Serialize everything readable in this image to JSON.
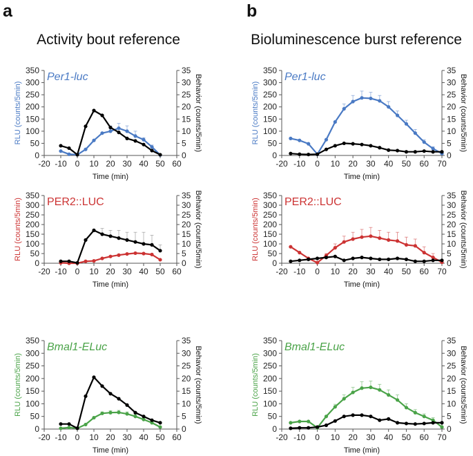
{
  "figure": {
    "panel_a_letter": "a",
    "panel_b_letter": "b",
    "col_a_title": "Activity bout reference",
    "col_b_title": "Bioluminescence burst reference"
  },
  "colors": {
    "per1": "#4a7ac4",
    "per2": "#cc3333",
    "bmal1": "#4aa348",
    "behavior": "#000000"
  },
  "chart_data": [
    {
      "id": "a1",
      "type": "line",
      "gene": "Per1-luc",
      "gene_italic": true,
      "color_key": "per1",
      "xlabel": "Time (min)",
      "ylabel_left": "RLU (counts/5min)",
      "ylabel_right": "Behavior (counts/5min)",
      "xlim": [
        -20,
        60
      ],
      "xticks": [
        -20,
        -10,
        0,
        10,
        20,
        30,
        40,
        50,
        60
      ],
      "ylim_left": [
        0,
        350
      ],
      "yticks_left": [
        0,
        50,
        100,
        150,
        200,
        250,
        300,
        350
      ],
      "ylim_right": [
        0,
        35
      ],
      "yticks_right": [
        0,
        5,
        10,
        15,
        20,
        25,
        30,
        35
      ],
      "series": [
        {
          "name": "RLU",
          "axis": "left",
          "x": [
            -10,
            -5,
            0,
            5,
            10,
            15,
            20,
            25,
            30,
            35,
            40,
            45,
            50
          ],
          "values": [
            18,
            5,
            3,
            25,
            62,
            92,
            100,
            112,
            100,
            80,
            65,
            35,
            2
          ],
          "err": [
            0,
            0,
            0,
            0,
            0,
            0,
            22,
            20,
            22,
            20,
            8,
            8,
            0
          ]
        },
        {
          "name": "Behavior",
          "axis": "right",
          "x": [
            -10,
            -5,
            0,
            5,
            10,
            15,
            20,
            25,
            30,
            35,
            40,
            45,
            50
          ],
          "values": [
            4,
            3,
            0.3,
            12,
            18.5,
            16.5,
            11.5,
            9.5,
            7,
            6,
            4.5,
            2,
            0.3
          ],
          "err": [
            0,
            0,
            0,
            0,
            0,
            0,
            0,
            0,
            0,
            0,
            0,
            0,
            0
          ]
        }
      ]
    },
    {
      "id": "a2",
      "type": "line",
      "gene": "PER2::LUC",
      "gene_italic": false,
      "color_key": "per2",
      "xlabel": "Time (min)",
      "ylabel_left": "RLU (counts/5min)",
      "ylabel_right": "Behavior (counts/5min)",
      "xlim": [
        -20,
        60
      ],
      "xticks": [
        -20,
        -10,
        0,
        10,
        20,
        30,
        40,
        50,
        60
      ],
      "ylim_left": [
        0,
        350
      ],
      "yticks_left": [
        0,
        50,
        100,
        150,
        200,
        250,
        300,
        350
      ],
      "ylim_right": [
        0,
        35
      ],
      "yticks_right": [
        0,
        5,
        10,
        15,
        20,
        25,
        30,
        35
      ],
      "series": [
        {
          "name": "RLU",
          "axis": "left",
          "x": [
            -10,
            -5,
            0,
            5,
            10,
            15,
            20,
            25,
            30,
            35,
            40,
            45,
            50
          ],
          "values": [
            2,
            0,
            0,
            10,
            12,
            25,
            35,
            42,
            48,
            52,
            50,
            45,
            18
          ],
          "err": [
            0,
            0,
            0,
            0,
            0,
            0,
            0,
            0,
            0,
            0,
            0,
            0,
            0
          ]
        },
        {
          "name": "Behavior",
          "axis": "right",
          "x": [
            -10,
            -5,
            0,
            5,
            10,
            15,
            20,
            25,
            30,
            35,
            40,
            45,
            50
          ],
          "values": [
            1,
            1,
            0.2,
            12,
            17,
            15,
            14,
            13,
            12,
            11,
            10,
            9.5,
            6.5
          ],
          "err": [
            0,
            0,
            0,
            0,
            0,
            3,
            3,
            4,
            4,
            5,
            6,
            5,
            3
          ]
        }
      ]
    },
    {
      "id": "a3",
      "type": "line",
      "gene": "Bmal1-ELuc",
      "gene_italic": true,
      "color_key": "bmal1",
      "xlabel": "Time (min)",
      "ylabel_left": "RLU (counts/5min)",
      "ylabel_right": "Behavior (counts/5min)",
      "xlim": [
        -20,
        60
      ],
      "xticks": [
        -20,
        -10,
        0,
        10,
        20,
        30,
        40,
        50,
        60
      ],
      "ylim_left": [
        0,
        350
      ],
      "yticks_left": [
        0,
        50,
        100,
        150,
        200,
        250,
        300,
        350
      ],
      "ylim_right": [
        0,
        35
      ],
      "yticks_right": [
        0,
        5,
        10,
        15,
        20,
        25,
        30,
        35
      ],
      "series": [
        {
          "name": "RLU",
          "axis": "left",
          "x": [
            -10,
            -5,
            0,
            5,
            10,
            15,
            20,
            25,
            30,
            35,
            40,
            45,
            50
          ],
          "values": [
            3,
            6,
            3,
            18,
            45,
            62,
            65,
            66,
            60,
            50,
            38,
            25,
            8
          ],
          "err": [
            0,
            0,
            0,
            0,
            0,
            6,
            8,
            8,
            8,
            8,
            6,
            5,
            0
          ]
        },
        {
          "name": "Behavior",
          "axis": "right",
          "x": [
            -10,
            -5,
            0,
            5,
            10,
            15,
            20,
            25,
            30,
            35,
            40,
            45,
            50
          ],
          "values": [
            2,
            2,
            0.3,
            13,
            20.5,
            17,
            14,
            12,
            9.5,
            6.5,
            5,
            3.5,
            2.5
          ],
          "err": [
            0,
            0,
            0,
            0,
            0,
            0,
            0,
            0,
            0,
            0,
            0,
            0,
            0
          ]
        }
      ]
    },
    {
      "id": "b1",
      "type": "line",
      "gene": "Per1-luc",
      "gene_italic": true,
      "color_key": "per1",
      "xlabel": "Time (min)",
      "ylabel_left": "RLU (counts/5min)",
      "ylabel_right": "Behavior (counts/5min)",
      "xlim": [
        -20,
        70
      ],
      "xticks": [
        -20,
        -10,
        0,
        10,
        20,
        30,
        40,
        50,
        60,
        70
      ],
      "ylim_left": [
        0,
        350
      ],
      "yticks_left": [
        0,
        50,
        100,
        150,
        200,
        250,
        300,
        350
      ],
      "ylim_right": [
        0,
        35
      ],
      "yticks_right": [
        0,
        5,
        10,
        15,
        20,
        25,
        30,
        35
      ],
      "series": [
        {
          "name": "RLU",
          "axis": "left",
          "x": [
            -15,
            -10,
            -5,
            0,
            5,
            10,
            15,
            20,
            25,
            30,
            35,
            40,
            45,
            50,
            55,
            60,
            65,
            70
          ],
          "values": [
            70,
            62,
            48,
            5,
            65,
            138,
            192,
            222,
            237,
            235,
            225,
            200,
            165,
            130,
            92,
            55,
            28,
            8
          ],
          "err": [
            0,
            0,
            0,
            0,
            0,
            0,
            20,
            25,
            28,
            25,
            22,
            22,
            18,
            15,
            15,
            10,
            8,
            0
          ]
        },
        {
          "name": "Behavior",
          "axis": "right",
          "x": [
            -15,
            -10,
            -5,
            0,
            5,
            10,
            15,
            20,
            25,
            30,
            35,
            40,
            45,
            50,
            55,
            60,
            65,
            70
          ],
          "values": [
            0.8,
            0.5,
            0.4,
            0.5,
            2.5,
            4,
            5,
            4.8,
            4.5,
            4,
            3.2,
            2.2,
            2,
            1.5,
            1.5,
            1.8,
            1.5,
            1.5
          ],
          "err": [
            0,
            0,
            0,
            0,
            0,
            0,
            0,
            0,
            0,
            0,
            0,
            0,
            0,
            0,
            0,
            0,
            0,
            0
          ]
        }
      ]
    },
    {
      "id": "b2",
      "type": "line",
      "gene": "PER2::LUC",
      "gene_italic": false,
      "color_key": "per2",
      "xlabel": "Time (min)",
      "ylabel_left": "RLU (counts/5min)",
      "ylabel_right": "Behavior (counts/5min)",
      "xlim": [
        -20,
        70
      ],
      "xticks": [
        -20,
        -10,
        0,
        10,
        20,
        30,
        40,
        50,
        60,
        70
      ],
      "ylim_left": [
        0,
        350
      ],
      "yticks_left": [
        0,
        50,
        100,
        150,
        200,
        250,
        300,
        350
      ],
      "ylim_right": [
        0,
        35
      ],
      "yticks_right": [
        0,
        5,
        10,
        15,
        20,
        25,
        30,
        35
      ],
      "series": [
        {
          "name": "RLU",
          "axis": "left",
          "x": [
            -15,
            -10,
            -5,
            0,
            5,
            10,
            15,
            20,
            25,
            30,
            35,
            40,
            45,
            50,
            55,
            60,
            65,
            70
          ],
          "values": [
            85,
            55,
            25,
            3,
            40,
            80,
            110,
            125,
            135,
            140,
            130,
            120,
            115,
            95,
            90,
            55,
            30,
            5
          ],
          "err": [
            0,
            0,
            0,
            0,
            10,
            20,
            30,
            35,
            40,
            45,
            40,
            40,
            45,
            40,
            35,
            30,
            20,
            0
          ]
        },
        {
          "name": "Behavior",
          "axis": "right",
          "x": [
            -15,
            -10,
            -5,
            0,
            5,
            10,
            15,
            20,
            25,
            30,
            35,
            40,
            45,
            50,
            55,
            60,
            65,
            70
          ],
          "values": [
            1,
            1.5,
            2,
            2.5,
            3,
            3.5,
            1.5,
            2.5,
            3,
            2.5,
            2,
            2,
            2.5,
            2,
            1,
            1,
            1.5,
            1.5
          ],
          "err": [
            0,
            0,
            0,
            0,
            0,
            0,
            0,
            0,
            0,
            0,
            0,
            0,
            0,
            0,
            0,
            0,
            0,
            0
          ]
        }
      ]
    },
    {
      "id": "b3",
      "type": "line",
      "gene": "Bmal1-ELuc",
      "gene_italic": true,
      "color_key": "bmal1",
      "xlabel": "Time (min)",
      "ylabel_left": "RLU (counts/5min)",
      "ylabel_right": "Behavior (counts/5min)",
      "xlim": [
        -20,
        70
      ],
      "xticks": [
        -20,
        -10,
        0,
        10,
        20,
        30,
        40,
        50,
        60,
        70
      ],
      "ylim_left": [
        0,
        350
      ],
      "yticks_left": [
        0,
        50,
        100,
        150,
        200,
        250,
        300,
        350
      ],
      "ylim_right": [
        0,
        35
      ],
      "yticks_right": [
        0,
        5,
        10,
        15,
        20,
        25,
        30,
        35
      ],
      "series": [
        {
          "name": "RLU",
          "axis": "left",
          "x": [
            -15,
            -10,
            -5,
            0,
            5,
            10,
            15,
            20,
            25,
            30,
            35,
            40,
            45,
            50,
            55,
            60,
            65,
            70
          ],
          "values": [
            25,
            30,
            30,
            5,
            50,
            88,
            120,
            145,
            162,
            165,
            155,
            135,
            115,
            85,
            65,
            50,
            35,
            8
          ],
          "err": [
            0,
            0,
            0,
            0,
            0,
            10,
            15,
            20,
            25,
            25,
            22,
            20,
            20,
            15,
            12,
            10,
            10,
            0
          ]
        },
        {
          "name": "Behavior",
          "axis": "right",
          "x": [
            -15,
            -10,
            -5,
            0,
            5,
            10,
            15,
            20,
            25,
            30,
            35,
            40,
            45,
            50,
            55,
            60,
            65,
            70
          ],
          "values": [
            0.3,
            0.5,
            0.5,
            0.8,
            1.5,
            3.2,
            5,
            5.5,
            5.5,
            5,
            3.5,
            4,
            2.5,
            2.2,
            2,
            2.2,
            2.5,
            2.5
          ],
          "err": [
            0,
            0,
            0,
            0,
            0,
            0,
            0,
            0,
            0,
            0,
            0,
            0,
            0,
            0,
            0,
            0,
            0,
            0
          ]
        }
      ]
    }
  ]
}
